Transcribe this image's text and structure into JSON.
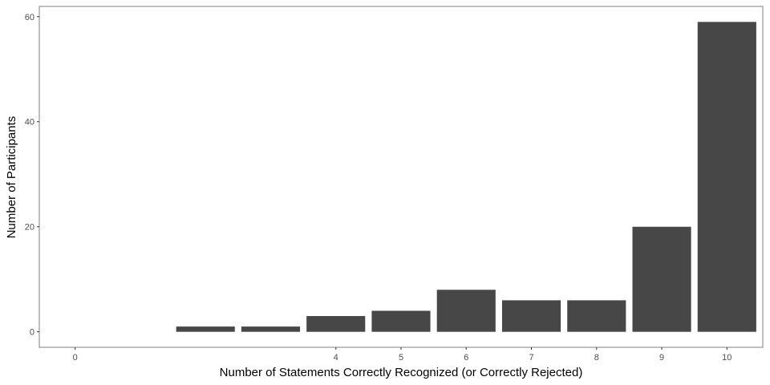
{
  "chart_data": {
    "type": "bar",
    "x": [
      0,
      2,
      3,
      4,
      5,
      6,
      7,
      8,
      9,
      10
    ],
    "values": [
      0,
      1,
      1,
      3,
      4,
      8,
      6,
      6,
      20,
      59
    ],
    "x_tick_labels": [
      "0",
      "4",
      "5",
      "6",
      "7",
      "8",
      "9",
      "10"
    ],
    "y_ticks": [
      0,
      20,
      40,
      60
    ],
    "xlabel": "Number of Statements Correctly Recognized (or Correctly Rejected)",
    "ylabel": "Number of Participants",
    "xlim": [
      -0.55,
      10.55
    ],
    "ylim": [
      -2.95,
      61.95
    ],
    "grid": false,
    "legend": "none",
    "bar_color": "#474747",
    "panel_border_color": "#7f7f7f"
  }
}
